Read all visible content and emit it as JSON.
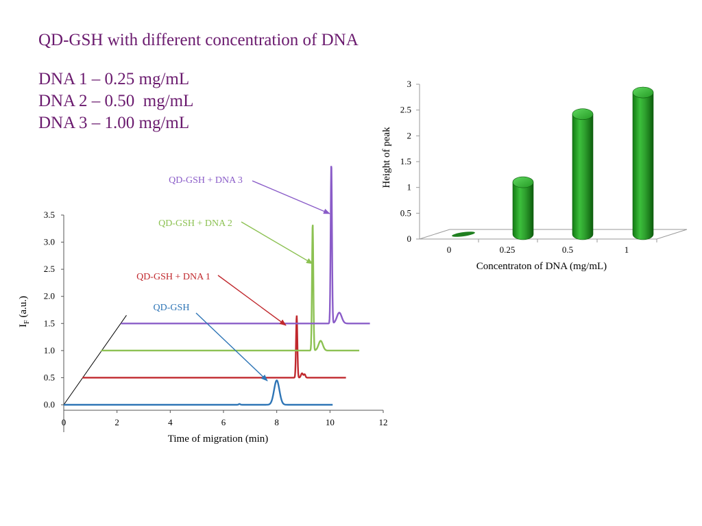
{
  "title": "QD-GSH with different concentration of DNA",
  "dna_list": [
    "DNA 1 – 0.25 mg/mL",
    "DNA 2 – 0.50  mg/mL",
    "DNA 3 – 1.00 mg/mL"
  ],
  "chart_data": [
    {
      "type": "line",
      "title": "",
      "xlabel": "Time of migration (min)",
      "ylabel": "I",
      "ylabel_sub": "F",
      "ylabel_suffix": " (a.u.)",
      "xlim": [
        0,
        12
      ],
      "ylim": [
        0,
        3.5
      ],
      "x_ticks": [
        "0",
        "2",
        "4",
        "6",
        "8",
        "10",
        "12"
      ],
      "y_ticks": [
        "0.0",
        "0.5",
        "1.0",
        "1.5",
        "2.0",
        "2.5",
        "3.0",
        "3.5"
      ],
      "series": [
        {
          "name": "QD-GSH",
          "color": "#2e75b6",
          "peaks": [
            {
              "x": 8.0,
              "height": 0.45,
              "width": 0.1
            },
            {
              "x": 6.6,
              "height": 0.015,
              "width": 0.03
            }
          ],
          "offset": 0.0,
          "x_start": 0.0,
          "x_end": 10.1
        },
        {
          "name": "QD-GSH + DNA 1",
          "color": "#c0282d",
          "peaks": [
            {
              "x": 8.75,
              "height": 1.15,
              "width": 0.025
            },
            {
              "x": 8.95,
              "height": 0.08,
              "width": 0.04
            },
            {
              "x": 9.05,
              "height": 0.06,
              "width": 0.03
            }
          ],
          "offset": 0.5,
          "x_start": 0.7,
          "x_end": 10.6
        },
        {
          "name": "QD-GSH + DNA 2",
          "color": "#8cc152",
          "peaks": [
            {
              "x": 9.35,
              "height": 2.35,
              "width": 0.025
            },
            {
              "x": 9.65,
              "height": 0.18,
              "width": 0.08
            }
          ],
          "offset": 1.0,
          "x_start": 1.4,
          "x_end": 11.1
        },
        {
          "name": "QD-GSH + DNA 3",
          "color": "#8a5cc8",
          "peaks": [
            {
              "x": 10.05,
              "height": 2.95,
              "width": 0.025
            },
            {
              "x": 10.35,
              "height": 0.2,
              "width": 0.09
            }
          ],
          "offset": 1.5,
          "x_start": 2.15,
          "x_end": 11.5
        }
      ]
    },
    {
      "type": "bar",
      "title": "",
      "xlabel": "Concentraton of DNA (mg/mL)",
      "ylabel": "Height of peak",
      "categories": [
        "0",
        "0.25",
        "0.5",
        "1"
      ],
      "values": [
        0.02,
        1.18,
        2.5,
        2.92
      ],
      "ylim": [
        0,
        3
      ],
      "y_ticks": [
        "0",
        "0.5",
        "1",
        "1.5",
        "2",
        "2.5",
        "3"
      ],
      "bar_color": "#2ea02e"
    }
  ]
}
